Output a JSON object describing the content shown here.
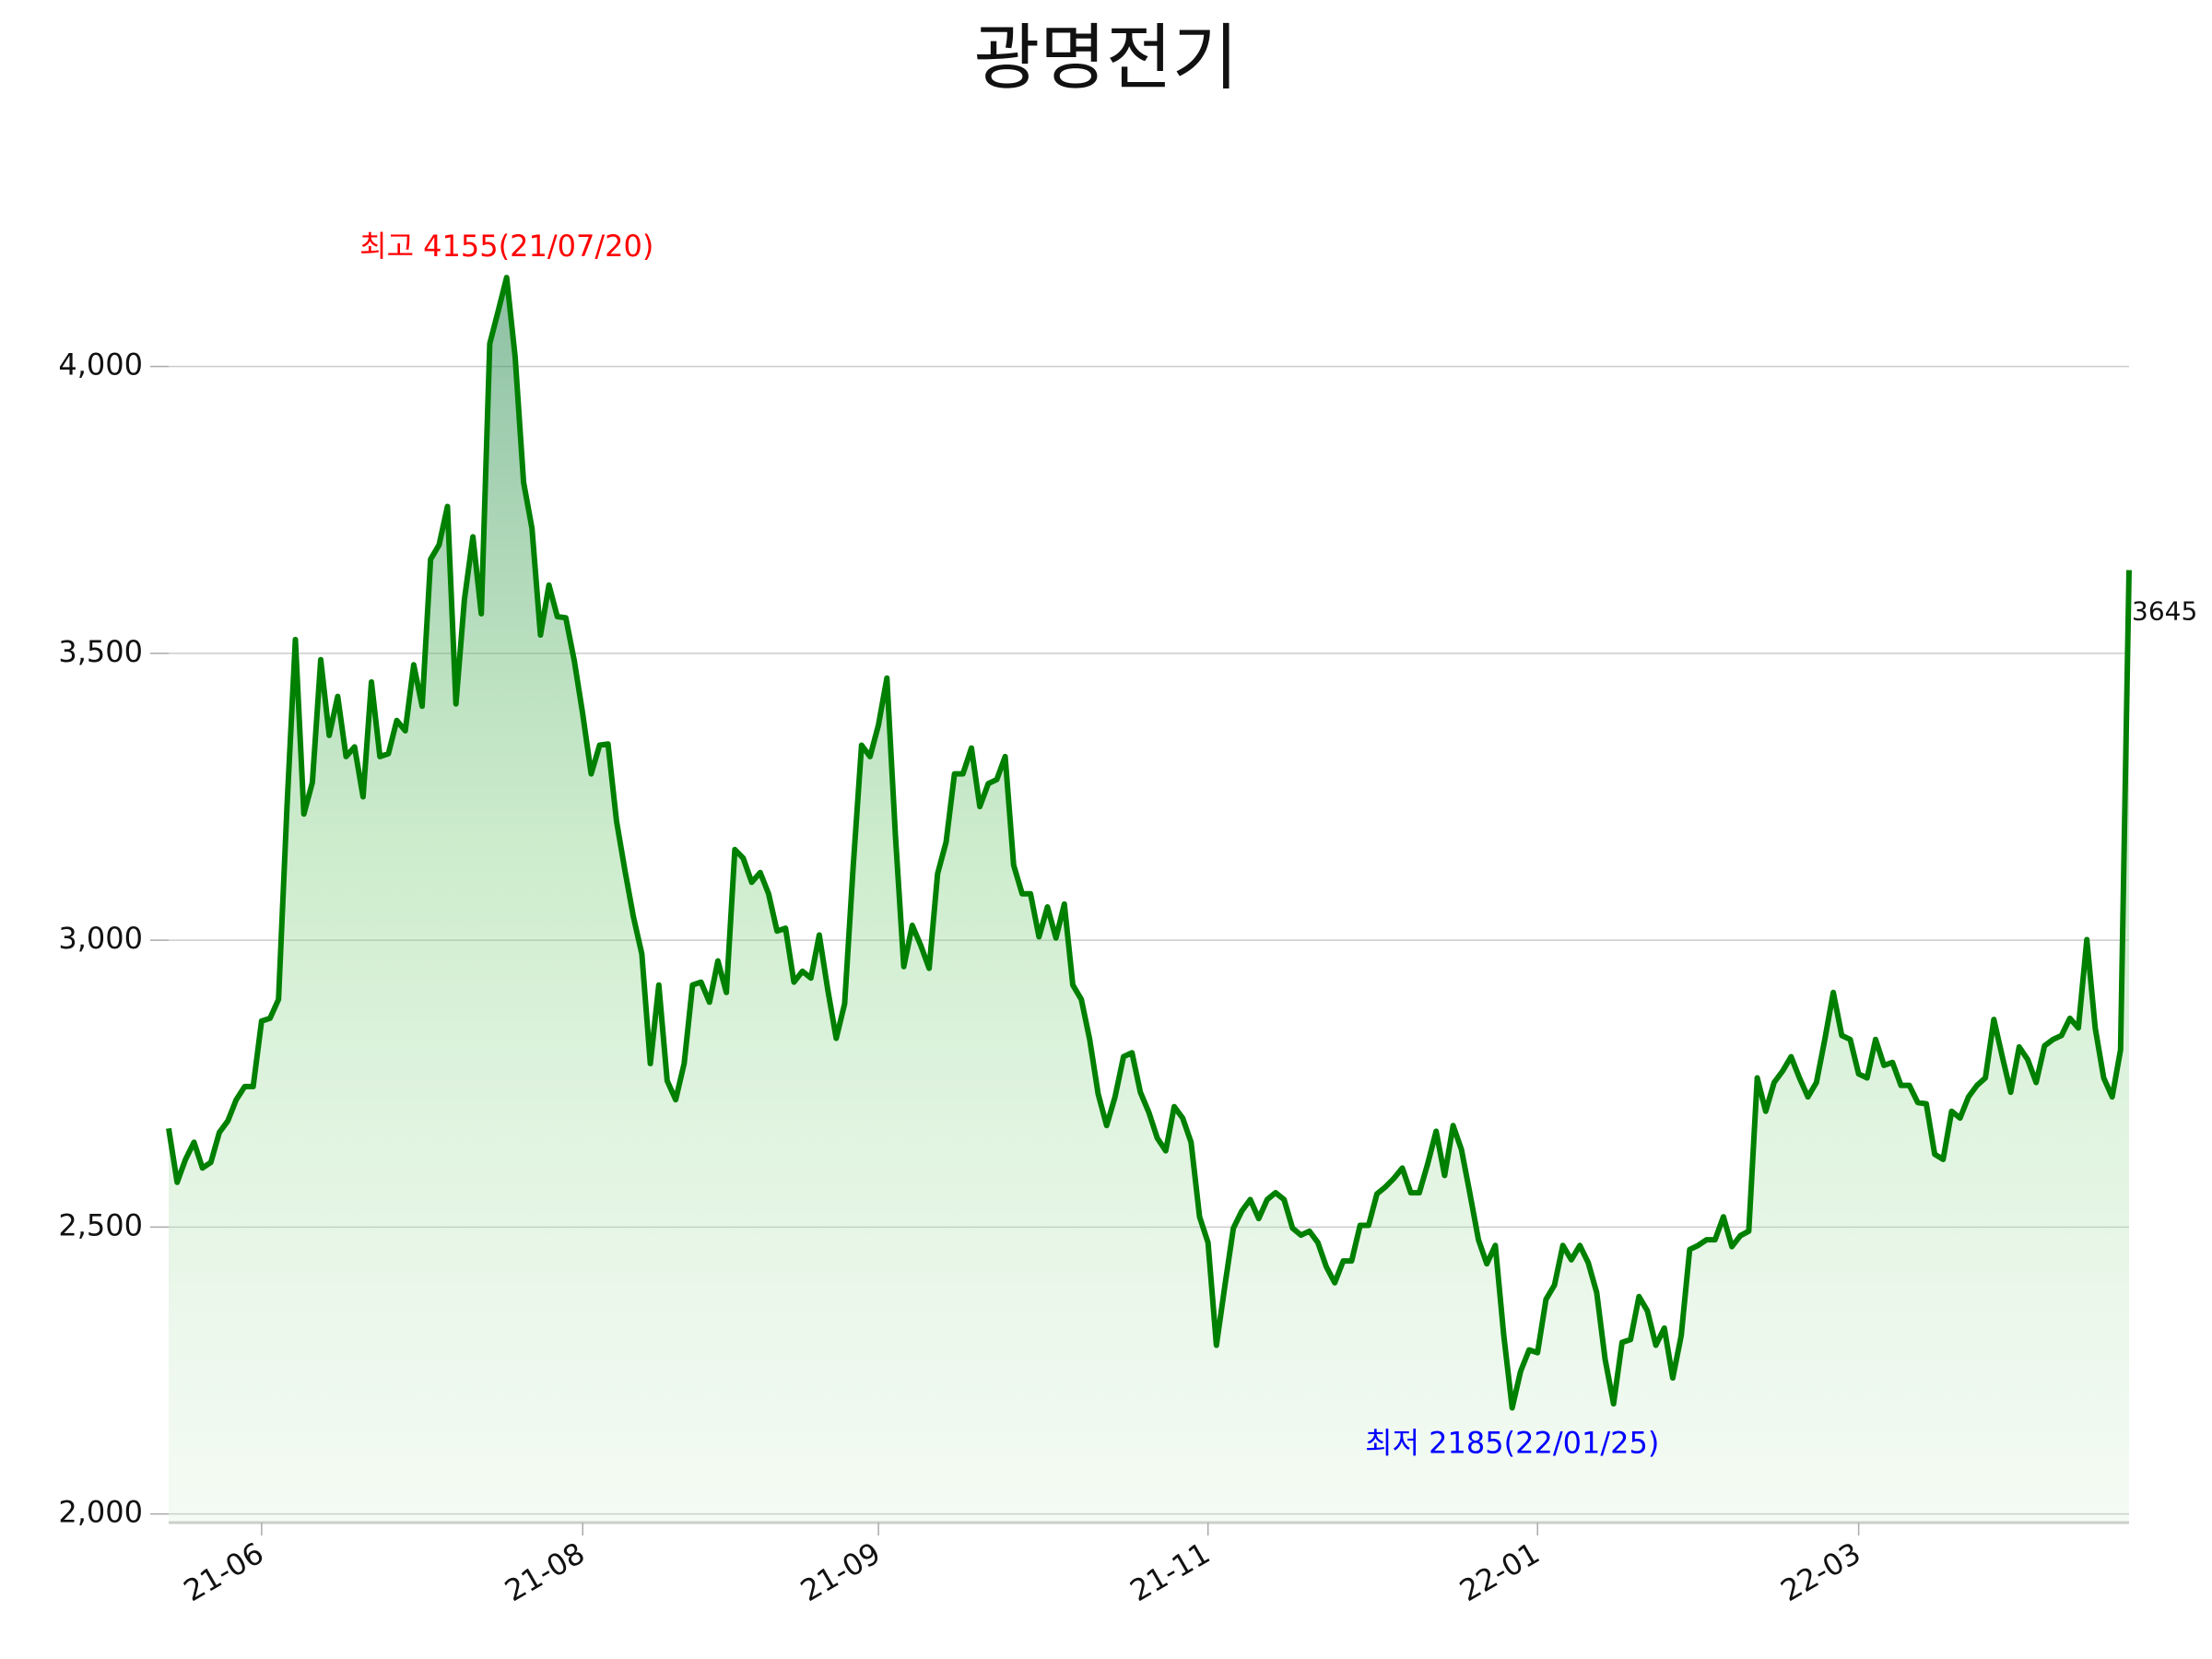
{
  "chart_data": {
    "type": "area-line",
    "title": "광명전기",
    "categories": [
      null,
      null,
      null,
      null,
      null,
      null,
      null,
      null,
      null,
      null,
      null,
      "21-06",
      null,
      null,
      null,
      null,
      null,
      null,
      null,
      null,
      null,
      null,
      null,
      null,
      null,
      null,
      null,
      null,
      null,
      null,
      null,
      null,
      null,
      null,
      null,
      null,
      null,
      null,
      null,
      null,
      null,
      null,
      null,
      null,
      null,
      null,
      null,
      null,
      null,
      "21-08",
      null,
      null,
      null,
      null,
      null,
      null,
      null,
      null,
      null,
      null,
      null,
      null,
      null,
      null,
      null,
      null,
      null,
      null,
      null,
      null,
      null,
      null,
      null,
      null,
      null,
      null,
      null,
      null,
      null,
      null,
      null,
      null,
      null,
      null,
      "21-09",
      null,
      null,
      null,
      null,
      null,
      null,
      null,
      null,
      null,
      null,
      null,
      null,
      null,
      null,
      null,
      null,
      null,
      null,
      null,
      null,
      null,
      null,
      null,
      null,
      null,
      null,
      null,
      null,
      null,
      null,
      null,
      null,
      null,
      null,
      null,
      null,
      null,
      null,
      "21-11",
      null,
      null,
      null,
      null,
      null,
      null,
      null,
      null,
      null,
      null,
      null,
      null,
      null,
      null,
      null,
      null,
      null,
      null,
      null,
      null,
      null,
      null,
      null,
      null,
      null,
      null,
      null,
      null,
      null,
      null,
      null,
      null,
      null,
      null,
      null,
      null,
      null,
      null,
      "22-01",
      null,
      null,
      null,
      null,
      null,
      null,
      null,
      null,
      null,
      null,
      null,
      null,
      null,
      null,
      null,
      null,
      null,
      null,
      null,
      null,
      null,
      null,
      null,
      null,
      null,
      null,
      null,
      null,
      null,
      null,
      null,
      null,
      null,
      null,
      null,
      null,
      null,
      "22-03",
      null,
      null,
      null,
      null,
      null,
      null,
      null,
      null,
      null,
      null,
      null,
      null,
      null,
      null,
      null,
      null,
      null,
      null,
      null,
      null,
      null,
      null,
      null,
      null,
      null,
      null,
      null,
      null,
      null,
      null,
      null,
      null
    ],
    "values": [
      2672,
      2578,
      2618,
      2648,
      2603,
      2613,
      2665,
      2685,
      2722,
      2745,
      2745,
      2859,
      2864,
      2897,
      3233,
      3524,
      3220,
      3275,
      3489,
      3357,
      3425,
      3320,
      3337,
      3250,
      3450,
      3320,
      3325,
      3383,
      3365,
      3480,
      3408,
      3664,
      3689,
      3756,
      3412,
      3594,
      3703,
      3569,
      4040,
      4097,
      4155,
      4017,
      3798,
      3718,
      3532,
      3619,
      3564,
      3562,
      3487,
      3395,
      3290,
      3340,
      3342,
      3208,
      3121,
      3041,
      2976,
      2785,
      2922,
      2755,
      2722,
      2785,
      2922,
      2927,
      2892,
      2964,
      2909,
      3158,
      3143,
      3101,
      3118,
      3081,
      3016,
      3021,
      2927,
      2946,
      2934,
      3009,
      2914,
      2829,
      2889,
      3126,
      3340,
      3320,
      3375,
      3457,
      3183,
      2954,
      3026,
      2991,
      2951,
      3116,
      3171,
      3290,
      3290,
      3335,
      3233,
      3273,
      3280,
      3320,
      3131,
      3081,
      3081,
      3006,
      3058,
      3004,
      3063,
      2922,
      2897,
      2827,
      2732,
      2677,
      2727,
      2797,
      2804,
      2735,
      2700,
      2655,
      2633,
      2710,
      2690,
      2648,
      2518,
      2473,
      2294,
      2398,
      2498,
      2528,
      2548,
      2515,
      2548,
      2560,
      2548,
      2498,
      2486,
      2493,
      2473,
      2431,
      2403,
      2441,
      2441,
      2503,
      2503,
      2558,
      2570,
      2585,
      2603,
      2560,
      2560,
      2610,
      2667,
      2590,
      2677,
      2635,
      2558,
      2478,
      2436,
      2468,
      2311,
      2185,
      2249,
      2286,
      2281,
      2374,
      2399,
      2468,
      2443,
      2468,
      2438,
      2386,
      2269,
      2192,
      2299,
      2304,
      2379,
      2354,
      2294,
      2324,
      2237,
      2311,
      2461,
      2468,
      2478,
      2478,
      2518,
      2466,
      2485,
      2493,
      2760,
      2702,
      2752,
      2772,
      2797,
      2760,
      2727,
      2752,
      2827,
      2909,
      2834,
      2827,
      2767,
      2760,
      2827,
      2782,
      2787,
      2747,
      2747,
      2717,
      2715,
      2627,
      2618,
      2702,
      2690,
      2727,
      2747,
      2760,
      2862,
      2797,
      2735,
      2814,
      2792,
      2752,
      2816,
      2827,
      2834,
      2864,
      2847,
      3001,
      2847,
      2760,
      2727,
      2809,
      3645
    ],
    "color": "#008000",
    "ylim": [
      1985,
      4250
    ],
    "yticks": [
      {
        "value": 2000,
        "label": "2,000"
      },
      {
        "value": 2500,
        "label": "2,500"
      },
      {
        "value": 3000,
        "label": "3,000"
      },
      {
        "value": 3500,
        "label": "3,500"
      },
      {
        "value": 4000,
        "label": "4,000"
      }
    ],
    "grid": true,
    "annotations": {
      "high": "최고 4155(21/07/20)",
      "low": "최저 2185(22/01/25)"
    }
  }
}
